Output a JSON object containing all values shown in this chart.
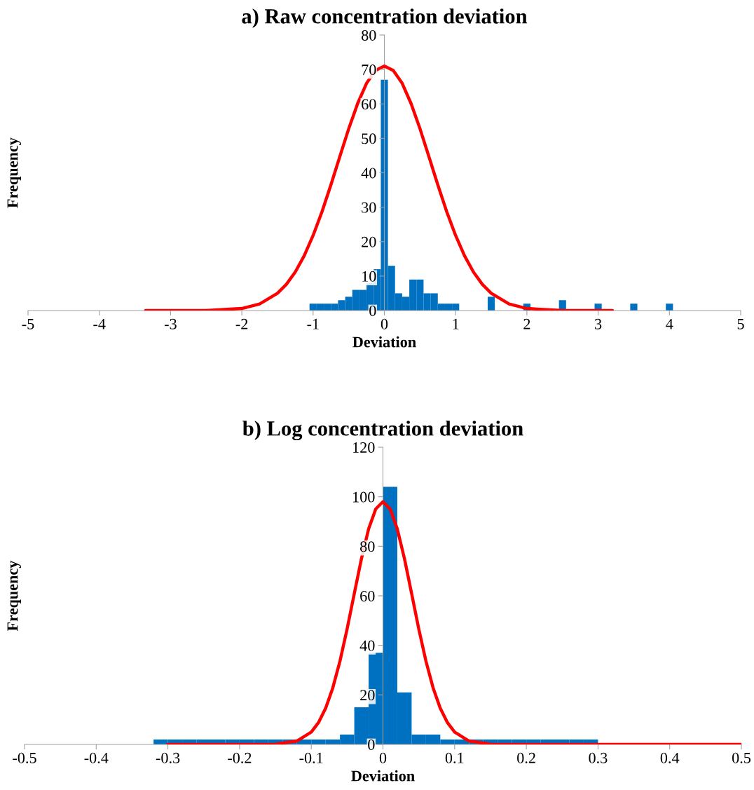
{
  "chart_data": [
    {
      "type": "histogram",
      "title": "a) Raw concentration deviation",
      "xlabel": "Deviation",
      "ylabel": "Frequency",
      "xlim": [
        -5,
        5
      ],
      "xticks": [
        -5,
        -4,
        -3,
        -2,
        -1,
        0,
        1,
        2,
        3,
        4,
        5
      ],
      "ylim": [
        0,
        80
      ],
      "yticks": [
        0,
        10,
        20,
        30,
        40,
        50,
        60,
        70,
        80
      ],
      "grid": false,
      "legend": false,
      "series": [
        {
          "type": "histogram",
          "color": "#0070c0",
          "bins": [
            -1.05,
            -0.95,
            -0.85,
            -0.75,
            -0.65,
            -0.55,
            -0.45,
            -0.35,
            -0.25,
            -0.15,
            -0.05,
            0.05,
            0.15,
            0.25,
            0.35,
            0.45,
            0.55,
            0.65,
            0.75,
            0.85,
            0.95,
            1.05,
            1.15,
            1.25,
            1.35,
            1.45,
            1.55,
            1.65,
            1.75,
            1.85,
            1.95,
            2.05,
            2.15,
            2.25,
            2.35,
            2.45,
            2.55,
            2.65,
            2.75,
            2.85,
            2.95,
            3.05,
            3.15,
            3.25,
            3.35,
            3.45,
            3.55,
            3.65,
            3.75,
            3.85,
            3.95,
            4.05
          ],
          "values": [
            2,
            2,
            2,
            2,
            3,
            4,
            6,
            6,
            8,
            12,
            67,
            13,
            5,
            4,
            9,
            9,
            5,
            5,
            2,
            2,
            2,
            0,
            0,
            0,
            0,
            4,
            0,
            0,
            0,
            0,
            2,
            0,
            0,
            0,
            0,
            3,
            0,
            0,
            0,
            0,
            2,
            0,
            0,
            0,
            0,
            2,
            0,
            0,
            0,
            0,
            2
          ]
        },
        {
          "type": "line",
          "color": "#ff0000",
          "x": [
            -3.35,
            -3,
            -2.5,
            -2,
            -1.75,
            -1.5,
            -1.375,
            -1.25,
            -1.125,
            -1,
            -0.875,
            -0.75,
            -0.625,
            -0.5,
            -0.375,
            -0.25,
            -0.125,
            0,
            0.125,
            0.25,
            0.375,
            0.5,
            0.625,
            0.75,
            0.875,
            1,
            1.125,
            1.25,
            1.375,
            1.5,
            1.75,
            2,
            2.5,
            3,
            3.2
          ],
          "values": [
            0,
            0,
            0,
            0.6,
            1.9,
            5.0,
            7.6,
            11.2,
            15.9,
            21.8,
            28.7,
            36.5,
            44.7,
            52.8,
            60.1,
            66,
            69.7,
            71,
            69.7,
            66,
            60.1,
            52.8,
            44.7,
            36.5,
            28.7,
            21.8,
            15.9,
            11.2,
            7.6,
            5.0,
            1.9,
            0.6,
            0,
            0,
            0
          ]
        }
      ]
    },
    {
      "type": "histogram",
      "title": "b) Log concentration deviation",
      "xlabel": "Deviation",
      "ylabel": "Frequency",
      "xlim": [
        -0.5,
        0.5
      ],
      "xticks": [
        -0.5,
        -0.4,
        -0.3,
        -0.2,
        -0.1,
        0,
        0.1,
        0.2,
        0.3,
        0.4,
        0.5
      ],
      "ylim": [
        0,
        120
      ],
      "yticks": [
        0,
        20,
        40,
        60,
        80,
        100,
        120
      ],
      "grid": false,
      "legend": false,
      "series": [
        {
          "type": "histogram",
          "color": "#0070c0",
          "bins": [
            -0.32,
            -0.3,
            -0.28,
            -0.26,
            -0.24,
            -0.22,
            -0.2,
            -0.18,
            -0.16,
            -0.14,
            -0.12,
            -0.1,
            -0.08,
            -0.06,
            -0.04,
            -0.02,
            0,
            0.02,
            0.04,
            0.06,
            0.08,
            0.1,
            0.12,
            0.14,
            0.16,
            0.18,
            0.2,
            0.22,
            0.24,
            0.26,
            0.28,
            0.3
          ],
          "values": [
            2,
            2,
            2,
            2,
            2,
            2,
            2,
            2,
            2,
            2,
            2,
            2,
            2,
            4,
            15,
            37,
            104,
            21,
            4,
            4,
            2,
            2,
            2,
            2,
            2,
            2,
            2,
            2,
            2,
            2,
            2
          ]
        },
        {
          "type": "line",
          "color": "#ff0000",
          "x": [
            -0.3,
            -0.2,
            -0.15,
            -0.12,
            -0.1,
            -0.09,
            -0.08,
            -0.07,
            -0.06,
            -0.05,
            -0.04,
            -0.03,
            -0.02,
            -0.01,
            0,
            0.01,
            0.02,
            0.03,
            0.04,
            0.05,
            0.06,
            0.07,
            0.08,
            0.09,
            0.1,
            0.12,
            0.15,
            0.2,
            0.3,
            0.4,
            0.5
          ],
          "values": [
            0,
            0,
            0.1,
            1.4,
            5.0,
            8.8,
            14.6,
            22.8,
            33.6,
            46.6,
            60.9,
            75,
            87,
            95.1,
            98,
            95.1,
            87,
            75,
            60.9,
            46.6,
            33.6,
            22.8,
            14.6,
            8.8,
            5.0,
            1.4,
            0.1,
            0,
            0,
            0,
            0
          ]
        }
      ]
    }
  ]
}
